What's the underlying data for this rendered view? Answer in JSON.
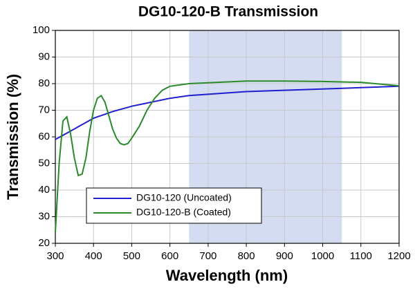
{
  "chart_data": {
    "type": "line",
    "title": "DG10-120-B Transmission",
    "x_label": "Wavelength (nm)",
    "y_label": "Transmission (%)",
    "x": [
      300,
      310,
      320,
      330,
      340,
      350,
      360,
      370,
      380,
      390,
      400,
      410,
      420,
      430,
      440,
      450,
      460,
      470,
      480,
      490,
      500,
      520,
      540,
      560,
      580,
      600,
      650,
      700,
      800,
      900,
      1000,
      1100,
      1200
    ],
    "series": [
      {
        "name": "DG10-120 (Uncoated)",
        "color": "#1f1fd0",
        "values": [
          59,
          59.8,
          60.6,
          61.4,
          62.2,
          63,
          63.8,
          64.6,
          65.4,
          66.2,
          67,
          67.5,
          68,
          68.5,
          69,
          69.5,
          69.9,
          70.3,
          70.7,
          71.1,
          71.5,
          72.1,
          72.7,
          73.3,
          73.9,
          74.5,
          75.5,
          76,
          77,
          77.5,
          78,
          78.5,
          79
        ]
      },
      {
        "name": "DG10-120-B (Coated)",
        "color": "#2a8a2a",
        "values": [
          24,
          50,
          66,
          67.5,
          61,
          52,
          45.5,
          46,
          52,
          62,
          70,
          74.5,
          75.5,
          73,
          68,
          63,
          59.5,
          57.5,
          57,
          57.5,
          59.5,
          64,
          70,
          74.5,
          77.5,
          79,
          80,
          80.3,
          81,
          81,
          80.8,
          80.5,
          79.2
        ]
      }
    ],
    "highlight": [
      650,
      1050
    ],
    "highlight_color": "#d3dcf0",
    "xlim": [
      300,
      1200
    ],
    "xticks": [
      300,
      400,
      500,
      600,
      700,
      800,
      900,
      1000,
      1100,
      1200
    ],
    "ylim": [
      20,
      100
    ],
    "yticks": [
      20,
      30,
      40,
      50,
      60,
      70,
      80,
      90,
      100
    ],
    "grid": true
  }
}
